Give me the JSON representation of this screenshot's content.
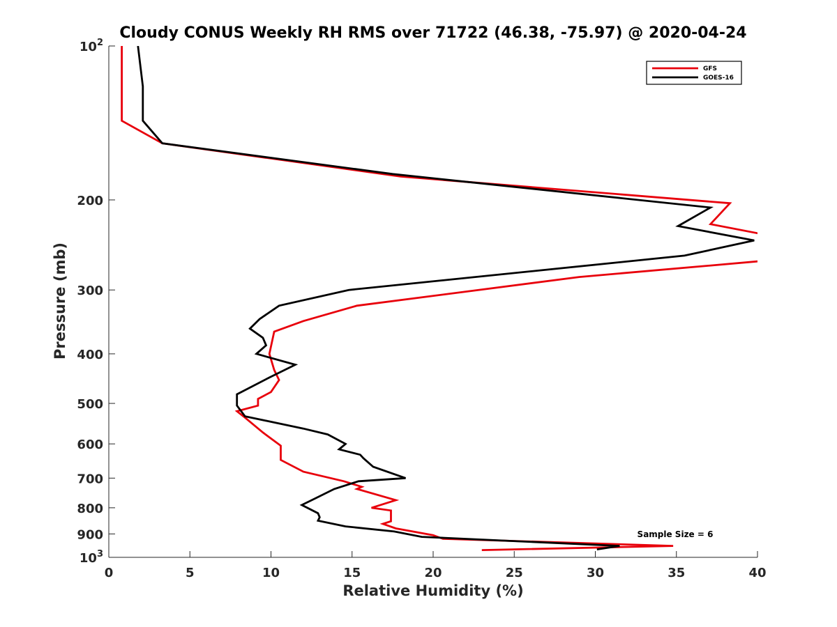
{
  "chart_data": {
    "type": "line",
    "title": "Cloudy CONUS Weekly RH RMS over 71722 (46.38, -75.97) @ 2020-04-24",
    "xlabel": "Relative Humidity (%)",
    "ylabel": "Pressure (mb)",
    "xlim": [
      0,
      40
    ],
    "ylim": [
      100,
      1000
    ],
    "yscale": "log",
    "y_reversed": true,
    "x_ticks": [
      "0",
      "5",
      "10",
      "15",
      "20",
      "25",
      "30",
      "35",
      "40"
    ],
    "y_ticks": [
      {
        "value": 100,
        "base": "10",
        "exp": "2"
      },
      {
        "value": 200,
        "label": "200"
      },
      {
        "value": 300,
        "label": "300"
      },
      {
        "value": 400,
        "label": "400"
      },
      {
        "value": 500,
        "label": "500"
      },
      {
        "value": 600,
        "label": "600"
      },
      {
        "value": 700,
        "label": "700"
      },
      {
        "value": 800,
        "label": "800"
      },
      {
        "value": 900,
        "label": "900"
      },
      {
        "value": 1000,
        "base": "10",
        "exp": "3"
      }
    ],
    "legend_position": "top-right",
    "annotation": "Sample Size = 6",
    "series": [
      {
        "name": "GFS",
        "color": "#e8000b",
        "x": [
          0.8,
          0.8,
          3.3,
          18,
          38.3,
          37.1,
          40.5,
          40.5,
          29,
          15.3,
          12,
          10.2,
          9.9,
          10.2,
          10.5,
          10,
          9.2,
          9.2,
          7.9,
          8.3,
          9.5,
          10.6,
          10.6,
          12,
          14.5,
          15.6,
          15.3,
          17.7,
          16.2,
          17.4,
          17.4,
          16.9,
          17.7,
          20,
          20.6,
          34.8,
          23
        ],
        "y": [
          100,
          140,
          155,
          180,
          203,
          223,
          234,
          263,
          283,
          322,
          345,
          362,
          400,
          430,
          450,
          475,
          490,
          505,
          518,
          530,
          570,
          605,
          645,
          680,
          710,
          728,
          735,
          773,
          800,
          810,
          850,
          860,
          878,
          905,
          920,
          950,
          968
        ]
      },
      {
        "name": "GOES-16",
        "color": "#000000",
        "x": [
          1.8,
          2.1,
          2.1,
          3.3,
          17.5,
          37.1,
          35.1,
          39.8,
          35.5,
          14.8,
          10.5,
          9.3,
          8.7,
          9.5,
          9.7,
          9.1,
          11.5,
          9.9,
          7.9,
          7.9,
          8.4,
          12,
          13.5,
          14.6,
          14.2,
          15.5,
          15.7,
          16.3,
          18.3,
          15.4,
          13.9,
          12.8,
          11.9,
          12.9,
          13.0,
          12.9,
          14.6,
          17.6,
          19.3,
          31.5,
          30.1
        ],
        "y": [
          100,
          120,
          140,
          155,
          178,
          207,
          225,
          240,
          257,
          300,
          322,
          342,
          357,
          372,
          385,
          400,
          420,
          445,
          480,
          505,
          530,
          560,
          575,
          600,
          615,
          630,
          640,
          665,
          700,
          710,
          735,
          765,
          790,
          820,
          835,
          848,
          870,
          890,
          912,
          950,
          965
        ]
      }
    ]
  }
}
